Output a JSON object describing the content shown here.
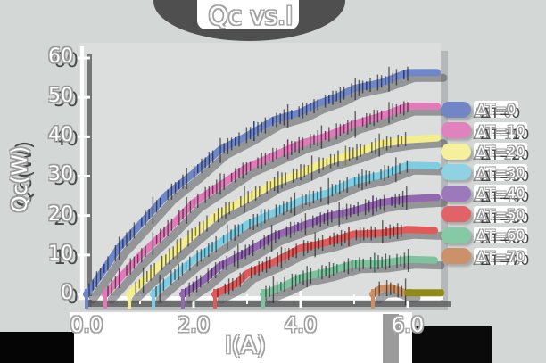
{
  "title": "Qc vs.I",
  "colors": {
    "background": "#d3d7d6",
    "plot_background": "#dcdedd",
    "plot_shadow": "#b4b8b8",
    "axis_line": "#fdfdfd",
    "shadow": "#4b4b4f"
  },
  "legend": {
    "items": [
      {
        "label": "ΔT=0",
        "color": "#7286c6"
      },
      {
        "label": "ΔT=10",
        "color": "#df82bd"
      },
      {
        "label": "ΔT=20",
        "color": "#f4f09c"
      },
      {
        "label": "ΔT=30",
        "color": "#8ed2e3"
      },
      {
        "label": "ΔT=40",
        "color": "#9b79bb"
      },
      {
        "label": "ΔT=50",
        "color": "#e06467"
      },
      {
        "label": "ΔT=60",
        "color": "#85c9a5"
      },
      {
        "label": "ΔT=70",
        "color": "#cb9168"
      }
    ]
  },
  "chart_data": {
    "type": "line",
    "title": "Qc vs.I",
    "xlabel": "I(A)",
    "ylabel": "Qc(W)",
    "xlim": [
      -0.15,
      6.9
    ],
    "ylim": [
      0,
      62
    ],
    "grid": false,
    "legend_position": "right",
    "xaxis": {
      "tick_labels": [
        "0.0",
        "2.0",
        "4.0",
        "6.0"
      ],
      "tick_values": [
        0,
        2,
        4,
        6
      ],
      "minor_tick_values": [
        1,
        3,
        5
      ]
    },
    "yaxis": {
      "tick_labels": [
        "0",
        "10",
        "20",
        "30",
        "40",
        "50",
        "60"
      ],
      "tick_values": [
        0,
        10,
        20,
        30,
        40,
        50,
        60
      ]
    },
    "series": [
      {
        "name": "ΔT=0",
        "color": "#6f86c8",
        "tick_color": "#20367d",
        "points": [
          [
            0,
            0
          ],
          [
            0.3,
            6
          ],
          [
            0.6,
            11.5
          ],
          [
            1,
            18
          ],
          [
            1.5,
            25
          ],
          [
            2,
            31
          ],
          [
            2.5,
            36.5
          ],
          [
            3,
            40.5
          ],
          [
            3.5,
            44
          ],
          [
            4,
            46.5
          ],
          [
            4.3,
            48
          ],
          [
            4.7,
            50.5
          ],
          [
            5,
            52
          ],
          [
            5.5,
            54
          ],
          [
            6,
            56
          ],
          [
            6.55,
            56.3
          ]
        ]
      },
      {
        "name": "ΔT=10",
        "color": "#e07ab8",
        "tick_color": "#8c2268",
        "points": [
          [
            0.35,
            0
          ],
          [
            0.7,
            5.5
          ],
          [
            1,
            9.5
          ],
          [
            1.5,
            16.5
          ],
          [
            2,
            23
          ],
          [
            2.5,
            28
          ],
          [
            3,
            32
          ],
          [
            3.5,
            35.5
          ],
          [
            4,
            38
          ],
          [
            4.5,
            40.5
          ],
          [
            5,
            43
          ],
          [
            5.5,
            45.5
          ],
          [
            6,
            47.5
          ],
          [
            6.55,
            47.7
          ]
        ]
      },
      {
        "name": "ΔT=20",
        "color": "#f5ee8e",
        "tick_color": "#8a7f1e",
        "points": [
          [
            0.8,
            0
          ],
          [
            1.2,
            5.5
          ],
          [
            1.5,
            9
          ],
          [
            2,
            15.5
          ],
          [
            2.5,
            20.5
          ],
          [
            3,
            24.5
          ],
          [
            3.5,
            28
          ],
          [
            4,
            31
          ],
          [
            4.5,
            33.5
          ],
          [
            5,
            36
          ],
          [
            5.5,
            38
          ],
          [
            6,
            39.5
          ],
          [
            6.55,
            39.7
          ]
        ]
      },
      {
        "name": "ΔT=30",
        "color": "#7fcde2",
        "tick_color": "#1f7d99",
        "points": [
          [
            1.25,
            0
          ],
          [
            1.6,
            4.5
          ],
          [
            2,
            8.5
          ],
          [
            2.5,
            13.5
          ],
          [
            3,
            17.5
          ],
          [
            3.5,
            21
          ],
          [
            4,
            23.5
          ],
          [
            4.5,
            26
          ],
          [
            5,
            28.5
          ],
          [
            5.5,
            30.5
          ],
          [
            6,
            32.5
          ],
          [
            6.55,
            32.6
          ]
        ]
      },
      {
        "name": "ΔT=40",
        "color": "#9468b0",
        "tick_color": "#4a2472",
        "points": [
          [
            1.8,
            0
          ],
          [
            2.2,
            4
          ],
          [
            2.5,
            7
          ],
          [
            3,
            11
          ],
          [
            3.5,
            14.5
          ],
          [
            4,
            17.5
          ],
          [
            4.5,
            19.5
          ],
          [
            5,
            21.5
          ],
          [
            5.5,
            23
          ],
          [
            6,
            24.5
          ],
          [
            6.55,
            24.6
          ]
        ]
      },
      {
        "name": "ΔT=50",
        "color": "#e05a5a",
        "tick_color": "#8c1f1f",
        "points": [
          [
            2.4,
            0
          ],
          [
            2.8,
            3
          ],
          [
            3,
            5
          ],
          [
            3.5,
            8.5
          ],
          [
            4,
            11.5
          ],
          [
            4.5,
            13.5
          ],
          [
            5,
            15
          ],
          [
            5.5,
            15.8
          ],
          [
            6,
            16.2
          ],
          [
            6.5,
            16.2
          ]
        ]
      },
      {
        "name": "ΔT=60",
        "color": "#7dc49e",
        "tick_color": "#1f7a52",
        "points": [
          [
            3.3,
            0
          ],
          [
            3.7,
            2.5
          ],
          [
            4,
            4
          ],
          [
            4.5,
            6
          ],
          [
            5,
            7.5
          ],
          [
            5.5,
            8.2
          ],
          [
            6,
            8.6
          ],
          [
            6.5,
            8.7
          ]
        ]
      },
      {
        "name": "ΔT=70",
        "color": "#cc9066",
        "tick_color": "#7a4a1f",
        "points": [
          [
            5.35,
            0
          ],
          [
            5.5,
            1.8
          ],
          [
            5.7,
            1.4
          ],
          [
            5.95,
            0.6
          ],
          [
            6.05,
            0.5
          ]
        ],
        "cap": {
          "from": 6.0,
          "to": 6.62,
          "q": 0.4,
          "color": "#8f8b16"
        }
      }
    ]
  }
}
